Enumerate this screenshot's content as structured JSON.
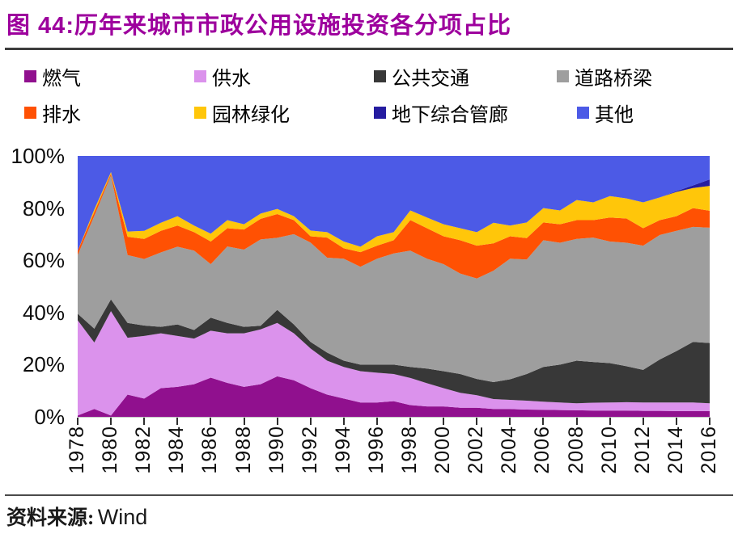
{
  "header": {
    "title": "图 44:历年来城市市政公用设施投资各分项占比"
  },
  "source": {
    "label": "资料来源:",
    "value": "Wind"
  },
  "chart_data": {
    "type": "area",
    "stacked": true,
    "unit": "percent-share",
    "title": "历年来城市市政公用设施投资各分项占比",
    "legend_position": "top",
    "grid": false,
    "ylim": [
      0,
      100
    ],
    "y_ticks": [
      "0%",
      "20%",
      "40%",
      "60%",
      "80%",
      "100%"
    ],
    "x_tick_step": 2,
    "x": [
      1978,
      1979,
      1980,
      1981,
      1982,
      1983,
      1984,
      1985,
      1986,
      1987,
      1988,
      1989,
      1990,
      1991,
      1992,
      1993,
      1994,
      1995,
      1996,
      1997,
      1998,
      1999,
      2000,
      2001,
      2002,
      2003,
      2004,
      2005,
      2006,
      2007,
      2008,
      2009,
      2010,
      2011,
      2012,
      2013,
      2014,
      2015,
      2016
    ],
    "series": [
      {
        "id": "gas",
        "name": "燃气",
        "color": "#90108e",
        "values": [
          0.5,
          3,
          0.5,
          8.5,
          7,
          11,
          11.5,
          12.5,
          15,
          13,
          11.5,
          12.5,
          15.5,
          14,
          11,
          8.5,
          7,
          5.5,
          5.5,
          6,
          4.5,
          4,
          4,
          3.5,
          3.5,
          3,
          3,
          2.8,
          2.7,
          2.6,
          2.5,
          2.4,
          2.4,
          2.4,
          2.3,
          2.3,
          2.2,
          2.2,
          2.2
        ]
      },
      {
        "id": "water-supply",
        "name": "供水",
        "color": "#db92ec",
        "values": [
          36.5,
          25.5,
          40,
          21.8,
          24,
          21,
          19.5,
          17.5,
          18,
          19,
          20.5,
          21,
          20.5,
          18,
          15.2,
          13,
          12.1,
          12,
          11.4,
          10.4,
          10.4,
          8.9,
          7,
          5.7,
          4.8,
          3.8,
          3.5,
          3.4,
          3.1,
          2.9,
          2.7,
          3,
          3.1,
          3.2,
          3.2,
          3.2,
          3.3,
          3.3,
          3
        ]
      },
      {
        "id": "public-transit",
        "name": "公共交通",
        "color": "#383838",
        "values": [
          2.5,
          5.3,
          4.5,
          5.7,
          4,
          2.5,
          4.4,
          3.3,
          5,
          4,
          2.5,
          1.4,
          5,
          3.4,
          2.5,
          3.1,
          2.4,
          2.5,
          3.1,
          3.6,
          4.2,
          5.6,
          6.5,
          7.2,
          6.2,
          6.5,
          7.9,
          10.2,
          13.3,
          14.5,
          16.3,
          15.6,
          15.1,
          13.8,
          12.5,
          16.5,
          19.7,
          23.2,
          23.1
        ]
      },
      {
        "id": "roads-bridges",
        "name": "道路桥梁",
        "color": "#9e9e9e",
        "values": [
          22.5,
          43.2,
          47.5,
          26,
          25.5,
          28.5,
          29.8,
          30.4,
          20.5,
          29.3,
          29.6,
          33.1,
          27.6,
          34.6,
          38.1,
          36.4,
          39.1,
          37.5,
          40.6,
          42.6,
          44.6,
          42.1,
          41,
          38.5,
          38.5,
          42.7,
          46.2,
          43.9,
          48.6,
          46.7,
          46.7,
          47.7,
          46.6,
          47.3,
          47.6,
          47.7,
          46.1,
          44.1,
          44.2
        ]
      },
      {
        "id": "drainage",
        "name": "排水",
        "color": "#ff5103",
        "values": [
          1.6,
          1.5,
          0.7,
          7,
          7.7,
          8.3,
          8.1,
          7.1,
          8.7,
          7,
          7.7,
          7.9,
          9.1,
          5.4,
          2.4,
          7.7,
          4,
          5.6,
          5,
          5.1,
          11.7,
          11.7,
          10.7,
          12.8,
          12.6,
          10.5,
          8.6,
          8.2,
          6.8,
          7.1,
          7.2,
          6.7,
          9.2,
          9.3,
          6.7,
          5.7,
          5.6,
          7.2,
          6.5
        ]
      },
      {
        "id": "landscaping",
        "name": "园林绿化",
        "color": "#ffc60a",
        "values": [
          0,
          1,
          0.6,
          2,
          3.1,
          3.1,
          3.6,
          2.5,
          3,
          3.1,
          2,
          2,
          2,
          1.5,
          2.2,
          2.1,
          2.6,
          2.1,
          3.6,
          3.1,
          3.7,
          4.1,
          4.6,
          4.6,
          5.2,
          7.9,
          4.1,
          6,
          5.5,
          5.3,
          7.7,
          6.8,
          8.2,
          7.7,
          9.9,
          8.7,
          9.3,
          7.7,
          9.5
        ]
      },
      {
        "id": "utility-tunnel",
        "name": "地下综合管廊",
        "color": "#251ca0",
        "values": [
          0,
          0,
          0,
          0,
          0,
          0,
          0,
          0,
          0,
          0,
          0,
          0,
          0,
          0,
          0,
          0,
          0,
          0,
          0,
          0,
          0,
          0,
          0,
          0,
          0,
          0,
          0,
          0,
          0,
          0,
          0,
          0,
          0,
          0,
          0,
          0,
          0.3,
          1,
          2.5
        ]
      },
      {
        "id": "other",
        "name": "其他",
        "color": "#4c5ae6",
        "values": [
          36.4,
          20.5,
          6.2,
          29,
          28.7,
          25.6,
          23.1,
          26.7,
          29.8,
          24.6,
          26.2,
          22.1,
          20.3,
          23.1,
          28.6,
          29.2,
          32.8,
          34.8,
          30.8,
          29.2,
          20.9,
          23.6,
          26.2,
          27.7,
          29.2,
          25.6,
          26.7,
          25.5,
          20,
          20.9,
          16.9,
          17.8,
          15.4,
          16.3,
          17.8,
          15.9,
          13.5,
          11.3,
          9
        ]
      }
    ]
  }
}
